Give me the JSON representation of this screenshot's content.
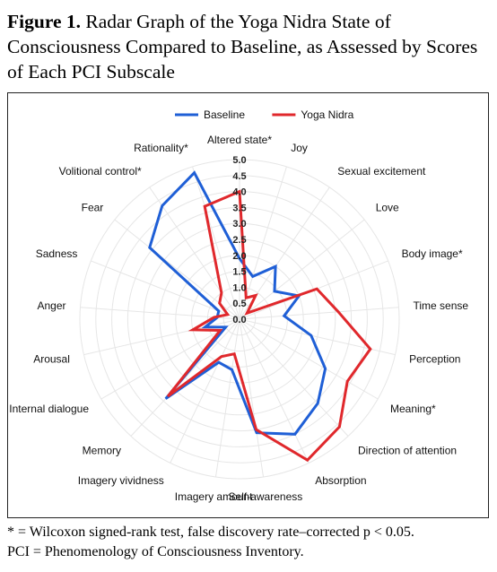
{
  "caption": {
    "label": "Figure 1.",
    "text": "Radar Graph of the Yoga Nidra State of Consciousness Compared to Baseline, as Assessed by Scores of Each PCI Subscale"
  },
  "footnotes": {
    "line1": "* = Wilcoxon signed-rank test, false discovery rate–corrected p < 0.05.",
    "line2": "PCI = Phenomenology of Consciousness Inventory."
  },
  "chart_data": {
    "type": "radar",
    "categories": [
      "Altered state*",
      "Joy",
      "Sexual excitement",
      "Love",
      "Body image*",
      "Time sense",
      "Perception",
      "Meaning*",
      "Direction of attention",
      "Absorption",
      "Self-awareness",
      "Imagery amount",
      "Imagery vividness",
      "Memory",
      "Internal dialogue",
      "Arousal",
      "Anger",
      "Sadness",
      "Fear",
      "Volitional control*",
      "Rationality*"
    ],
    "rlim": [
      0,
      5
    ],
    "ticks": [
      "0.0",
      "0.5",
      "1.0",
      "1.5",
      "2.0",
      "2.5",
      "3.0",
      "3.5",
      "4.0",
      "4.5",
      "5.0"
    ],
    "legend_position": "top",
    "grid": true,
    "series": [
      {
        "name": "Baseline",
        "color": "#1f5fd6",
        "values": [
          1.9,
          1.4,
          2.0,
          1.4,
          2.0,
          1.4,
          2.3,
          3.1,
          3.6,
          4.0,
          3.6,
          1.6,
          1.5,
          3.4,
          0.5,
          1.1,
          0.7,
          0.7,
          3.6,
          4.3,
          4.8
        ]
      },
      {
        "name": "Yoga Nidra",
        "color": "#e0282c",
        "values": [
          4.0,
          0.7,
          0.9,
          0.3,
          2.6,
          3.1,
          4.2,
          3.9,
          4.6,
          4.9,
          3.5,
          1.1,
          1.3,
          3.3,
          0.7,
          1.5,
          0.8,
          0.4,
          0.8,
          1.0,
          3.7
        ]
      }
    ]
  }
}
